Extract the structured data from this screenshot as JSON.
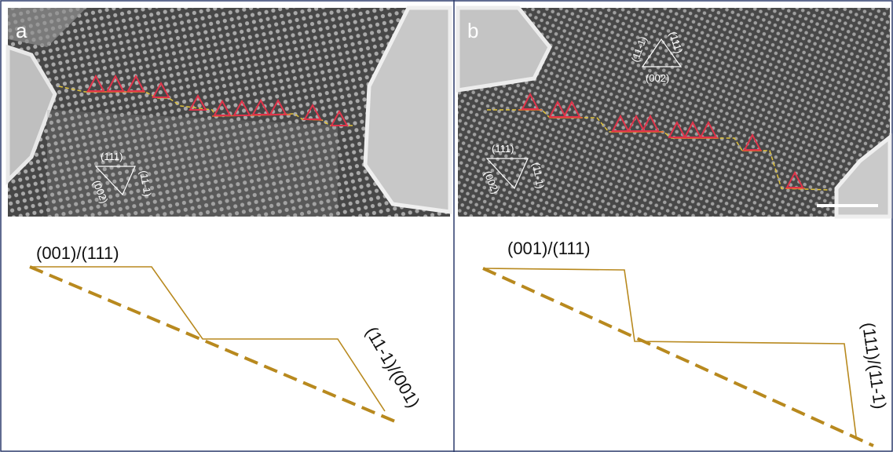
{
  "panels": [
    {
      "label": "a",
      "miller": {
        "top": "(111)",
        "right": "(11-1)",
        "left": "(002)"
      },
      "interface_top": "(001)/(111)",
      "interface_side": "(11-1)/(001)"
    },
    {
      "label": "b",
      "miller": {
        "top_left": "(11-1)",
        "top_right": "(111)",
        "bottom": "(002)",
        "lower_top": "(111)",
        "lower_right": "(11-1)",
        "lower_left": "(002)"
      },
      "interface_top": "(001)/(111)",
      "interface_side": "(111)/(11-1)"
    }
  ],
  "colors": {
    "step_line": "#b8891e",
    "triangle": "#e0344a",
    "trace": "#e0c23a",
    "border": "#2b3a6b"
  }
}
